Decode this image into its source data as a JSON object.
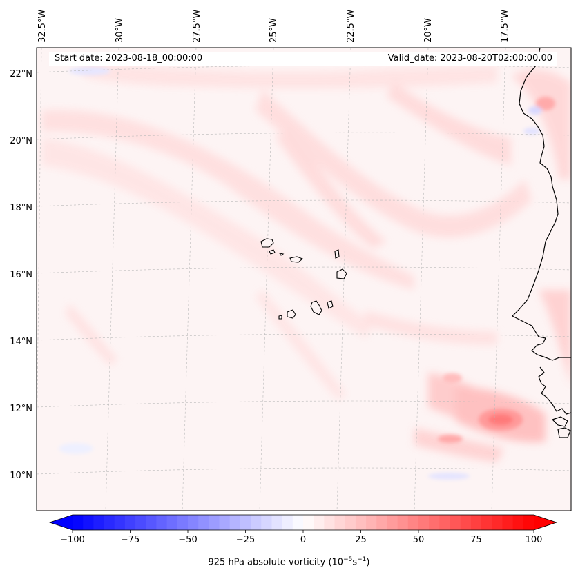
{
  "annotations": {
    "start_date": "Start date: 2023-08-18_00:00:00",
    "valid_date": "Valid_date: 2023-08-20T02:00:00.00"
  },
  "longitude_labels": [
    "32.5°W",
    "30°W",
    "27.5°W",
    "25°W",
    "22.5°W",
    "20°W",
    "17.5°W"
  ],
  "latitude_labels": [
    "22°N",
    "20°N",
    "18°N",
    "16°N",
    "14°N",
    "12°N",
    "10°N"
  ],
  "colorbar": {
    "title_prefix": "925 hPa absolute vorticity (10",
    "title_exp1": "−5",
    "title_mid": "s",
    "title_exp2": "−1",
    "title_suffix": ")",
    "tick_values": [
      -100,
      -75,
      -50,
      -25,
      0,
      25,
      50,
      75,
      100
    ],
    "tick_labels": [
      "−100",
      "−75",
      "−50",
      "−25",
      "0",
      "25",
      "50",
      "75",
      "100"
    ],
    "min": -100,
    "max": 100,
    "levels": 44,
    "neg_color": "#0000ff",
    "pos_color": "#ff0000",
    "mid_color": "#ffffff"
  }
}
